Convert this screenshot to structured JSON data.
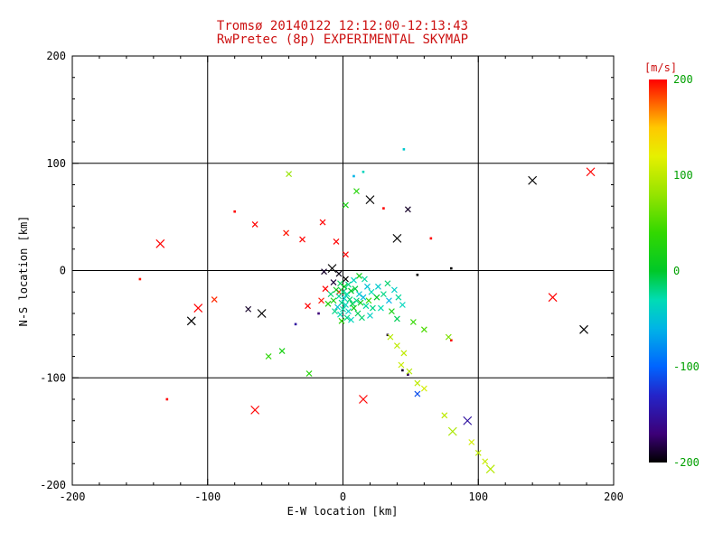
{
  "title": {
    "line1": "Tromsø 20140122 12:12:00-12:13:43",
    "line2": "RwPretec (8p) EXPERIMENTAL SKYMAP"
  },
  "colors": {
    "background": "#ffffff",
    "title": "#cc1111",
    "axis": "#000000",
    "unit_label": "#cc1111",
    "colorbar_tick_label": "#00a000"
  },
  "chart_data": {
    "type": "scatter",
    "title": "Tromsø 20140122 12:12:00-12:13:43 / RwPretec (8p) EXPERIMENTAL SKYMAP",
    "xlabel": "E-W location [km]",
    "ylabel": "N-S location [km]",
    "xlim": [
      -200,
      200
    ],
    "ylim": [
      -200,
      200
    ],
    "grid": true,
    "x_ticks": [
      {
        "v": -200,
        "label": "-200"
      },
      {
        "v": -100,
        "label": "-100"
      },
      {
        "v": 0,
        "label": "0"
      },
      {
        "v": 100,
        "label": "100"
      },
      {
        "v": 200,
        "label": "200"
      }
    ],
    "y_ticks": [
      {
        "v": -200,
        "label": "-200"
      },
      {
        "v": -100,
        "label": "-100"
      },
      {
        "v": 0,
        "label": "0"
      },
      {
        "v": 100,
        "label": "100"
      },
      {
        "v": 200,
        "label": "200"
      }
    ],
    "minor_tick_step": 20,
    "colorbar": {
      "unit": "[m/s]",
      "range": [
        -200,
        200
      ],
      "ticks": [
        {
          "v": 200,
          "label": "200"
        },
        {
          "v": 100,
          "label": "100"
        },
        {
          "v": 0,
          "label": "0"
        },
        {
          "v": -100,
          "label": "-100"
        },
        {
          "v": -200,
          "label": "-200"
        }
      ],
      "stops": [
        {
          "v": -200,
          "c": "#000000"
        },
        {
          "v": -170,
          "c": "#3c0078"
        },
        {
          "v": -130,
          "c": "#2424c8"
        },
        {
          "v": -100,
          "c": "#0064ff"
        },
        {
          "v": -60,
          "c": "#00b4e6"
        },
        {
          "v": -30,
          "c": "#00dcb4"
        },
        {
          "v": 0,
          "c": "#00c828"
        },
        {
          "v": 40,
          "c": "#32d800"
        },
        {
          "v": 80,
          "c": "#96e400"
        },
        {
          "v": 120,
          "c": "#e6f000"
        },
        {
          "v": 150,
          "c": "#ffc800"
        },
        {
          "v": 175,
          "c": "#ff6400"
        },
        {
          "v": 200,
          "c": "#ff0000"
        }
      ]
    },
    "points_format": [
      "x_km",
      "y_km",
      "velocity_ms",
      "marker(0=dot,1=x,2=large-x)"
    ],
    "points": [
      [
        -135,
        25,
        200,
        2
      ],
      [
        -150,
        -8,
        195,
        0
      ],
      [
        -107,
        -35,
        200,
        2
      ],
      [
        -95,
        -27,
        190,
        1
      ],
      [
        -80,
        55,
        200,
        0
      ],
      [
        -65,
        43,
        200,
        1
      ],
      [
        -42,
        35,
        195,
        1
      ],
      [
        -30,
        29,
        200,
        1
      ],
      [
        -15,
        45,
        200,
        1
      ],
      [
        -5,
        27,
        200,
        1
      ],
      [
        2,
        15,
        200,
        1
      ],
      [
        -13,
        -17,
        200,
        1
      ],
      [
        -16,
        -28,
        195,
        1
      ],
      [
        -26,
        -33,
        200,
        1
      ],
      [
        -65,
        -130,
        200,
        2
      ],
      [
        -130,
        -120,
        200,
        0
      ],
      [
        15,
        -120,
        200,
        2
      ],
      [
        30,
        58,
        200,
        0
      ],
      [
        65,
        30,
        200,
        0
      ],
      [
        80,
        -65,
        200,
        0
      ],
      [
        155,
        -25,
        200,
        2
      ],
      [
        183,
        92,
        200,
        2
      ],
      [
        -3,
        -20,
        190,
        1
      ],
      [
        -112,
        -47,
        -200,
        2
      ],
      [
        -60,
        -40,
        -200,
        2
      ],
      [
        -70,
        -36,
        -190,
        1
      ],
      [
        20,
        66,
        -200,
        2
      ],
      [
        48,
        57,
        -190,
        1
      ],
      [
        140,
        84,
        -200,
        2
      ],
      [
        178,
        -55,
        -200,
        2
      ],
      [
        40,
        30,
        -200,
        2
      ],
      [
        -8,
        2,
        -200,
        2
      ],
      [
        -3,
        -3,
        -195,
        1
      ],
      [
        -14,
        -1,
        -190,
        1
      ],
      [
        2,
        -8,
        -200,
        1
      ],
      [
        -7,
        -11,
        -185,
        1
      ],
      [
        55,
        -4,
        -200,
        0
      ],
      [
        80,
        2,
        -200,
        0
      ],
      [
        -18,
        -40,
        -170,
        0
      ],
      [
        -35,
        -50,
        -150,
        0
      ],
      [
        44,
        -93,
        -190,
        0
      ],
      [
        48,
        -97,
        -180,
        0
      ],
      [
        33,
        -60,
        -185,
        0
      ],
      [
        92,
        -140,
        -150,
        2
      ],
      [
        55,
        -115,
        -110,
        1
      ],
      [
        8,
        88,
        -60,
        0
      ],
      [
        45,
        113,
        -45,
        0
      ],
      [
        15,
        92,
        -35,
        0
      ],
      [
        -2,
        -12,
        -10,
        1
      ],
      [
        1,
        -15,
        5,
        1
      ],
      [
        4,
        -13,
        -20,
        1
      ],
      [
        -5,
        -18,
        10,
        1
      ],
      [
        0,
        -20,
        -15,
        2
      ],
      [
        3,
        -22,
        -30,
        1
      ],
      [
        6,
        -19,
        0,
        1
      ],
      [
        -3,
        -24,
        -25,
        1
      ],
      [
        1,
        -26,
        -40,
        1
      ],
      [
        5,
        -27,
        -15,
        1
      ],
      [
        -7,
        -28,
        20,
        1
      ],
      [
        -1,
        -30,
        -20,
        1
      ],
      [
        2,
        -32,
        -35,
        1
      ],
      [
        7,
        -31,
        -10,
        1
      ],
      [
        -4,
        -34,
        -50,
        1
      ],
      [
        0,
        -36,
        -25,
        1
      ],
      [
        4,
        -38,
        -40,
        1
      ],
      [
        -2,
        -41,
        -30,
        1
      ],
      [
        8,
        -35,
        15,
        1
      ],
      [
        10,
        -28,
        -20,
        1
      ],
      [
        12,
        -22,
        -45,
        1
      ],
      [
        9,
        -17,
        -5,
        1
      ],
      [
        13,
        -30,
        10,
        1
      ],
      [
        -9,
        -22,
        -15,
        1
      ],
      [
        -11,
        -31,
        25,
        1
      ],
      [
        -6,
        -38,
        -20,
        1
      ],
      [
        15,
        -25,
        -55,
        1
      ],
      [
        17,
        -33,
        -25,
        1
      ],
      [
        11,
        -40,
        -10,
        1
      ],
      [
        3,
        -44,
        -20,
        1
      ],
      [
        -1,
        -47,
        30,
        1
      ],
      [
        6,
        -46,
        -35,
        1
      ],
      [
        14,
        -44,
        -15,
        1
      ],
      [
        19,
        -28,
        40,
        1
      ],
      [
        21,
        -20,
        -30,
        1
      ],
      [
        18,
        -15,
        -50,
        1
      ],
      [
        22,
        -35,
        -20,
        1
      ],
      [
        25,
        -25,
        0,
        1
      ],
      [
        20,
        -42,
        -40,
        1
      ],
      [
        16,
        -8,
        -25,
        1
      ],
      [
        12,
        -5,
        15,
        1
      ],
      [
        8,
        -9,
        -35,
        1
      ],
      [
        26,
        -15,
        -45,
        1
      ],
      [
        30,
        -22,
        -20,
        1
      ],
      [
        34,
        -28,
        -60,
        1
      ],
      [
        28,
        -35,
        -30,
        1
      ],
      [
        38,
        -18,
        -40,
        1
      ],
      [
        33,
        -12,
        -15,
        1
      ],
      [
        41,
        -25,
        -25,
        1
      ],
      [
        36,
        -38,
        20,
        1
      ],
      [
        44,
        -32,
        -35,
        1
      ],
      [
        40,
        -45,
        -10,
        1
      ],
      [
        -45,
        -75,
        20,
        1
      ],
      [
        -55,
        -80,
        35,
        1
      ],
      [
        -25,
        -96,
        30,
        1
      ],
      [
        -40,
        90,
        80,
        1
      ],
      [
        10,
        74,
        30,
        1
      ],
      [
        2,
        61,
        20,
        1
      ],
      [
        60,
        -55,
        50,
        1
      ],
      [
        78,
        -62,
        70,
        1
      ],
      [
        52,
        -48,
        40,
        1
      ],
      [
        35,
        -62,
        95,
        1
      ],
      [
        40,
        -70,
        100,
        1
      ],
      [
        45,
        -77,
        100,
        1
      ],
      [
        43,
        -88,
        105,
        1
      ],
      [
        49,
        -94,
        95,
        1
      ],
      [
        55,
        -105,
        100,
        1
      ],
      [
        60,
        -110,
        110,
        1
      ],
      [
        75,
        -135,
        100,
        1
      ],
      [
        81,
        -150,
        90,
        2
      ],
      [
        95,
        -160,
        110,
        1
      ],
      [
        100,
        -170,
        100,
        1
      ],
      [
        105,
        -178,
        105,
        1
      ],
      [
        109,
        -185,
        95,
        2
      ]
    ]
  }
}
